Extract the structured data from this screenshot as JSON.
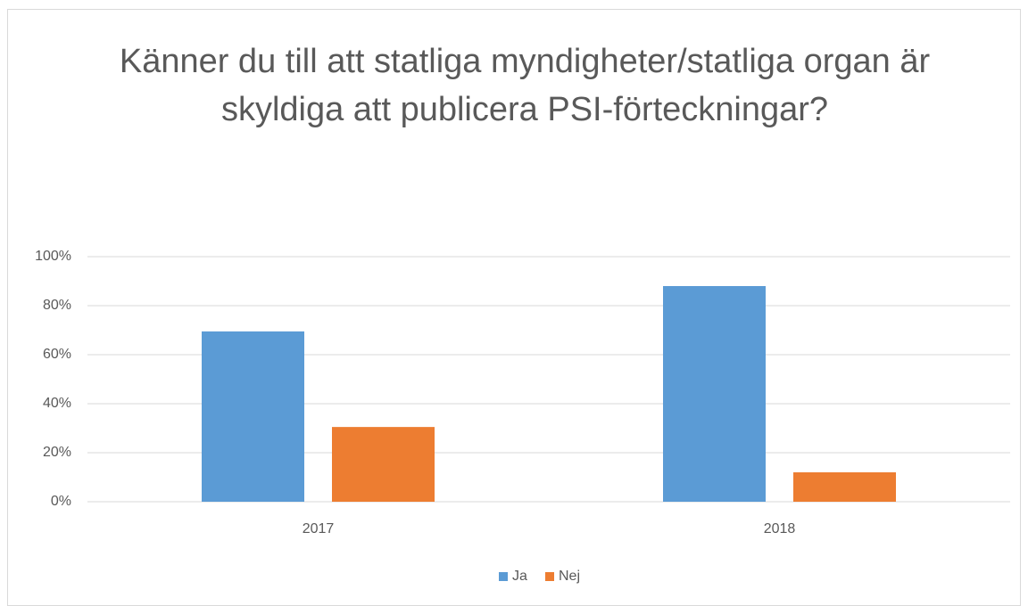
{
  "chart_data": {
    "type": "bar",
    "title": "Känner du till att statliga myndigheter/statliga organ är skyldiga att publicera PSI-förteckningar?",
    "categories": [
      "2017",
      "2018"
    ],
    "series": [
      {
        "name": "Ja",
        "color": "#5b9bd5",
        "values": [
          69.5,
          88
        ]
      },
      {
        "name": "Nej",
        "color": "#ed7d31",
        "values": [
          30.5,
          12
        ]
      }
    ],
    "ylim": [
      0,
      100
    ],
    "yticks": [
      {
        "value": 0,
        "label": "0%"
      },
      {
        "value": 20,
        "label": "20%"
      },
      {
        "value": 40,
        "label": "40%"
      },
      {
        "value": 60,
        "label": "60%"
      },
      {
        "value": 80,
        "label": "80%"
      },
      {
        "value": 100,
        "label": "100%"
      }
    ],
    "grid": true,
    "legend": "bottom"
  }
}
